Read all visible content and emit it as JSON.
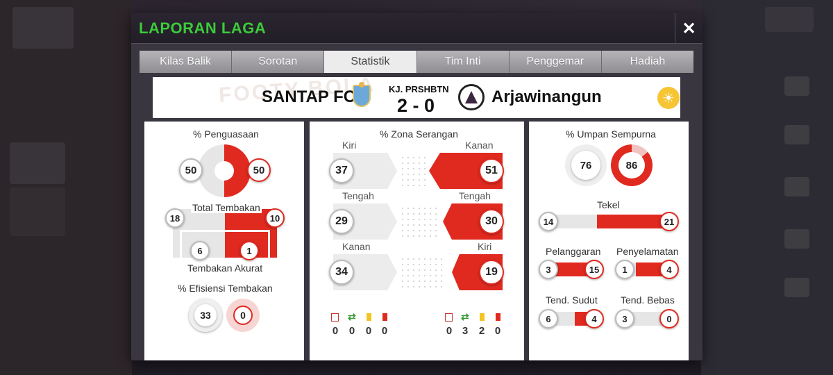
{
  "dialog": {
    "title": "LAPORAN LAGA",
    "close_icon": "✕"
  },
  "tabs": [
    {
      "label": "Kilas Balik"
    },
    {
      "label": "Sorotan"
    },
    {
      "label": "Statistik",
      "active": true
    },
    {
      "label": "Tim Inti"
    },
    {
      "label": "Penggemar"
    },
    {
      "label": "Hadiah"
    }
  ],
  "match": {
    "watermark": "FOOTY BOLA",
    "home": "SANTAP FC",
    "away": "Arjawinangun",
    "venue": "KJ. PRSHBTN",
    "score": "2 - 0",
    "weather_icon": "☀"
  },
  "left_panel": {
    "possession_label": "% Penguasaan",
    "possession_home": "50",
    "possession_away": "50",
    "total_shots_label": "Total Tembakan",
    "total_shots_home": "18",
    "total_shots_away": "10",
    "on_target_home": "6",
    "on_target_away": "1",
    "on_target_label": "Tembakan Akurat",
    "efficiency_label": "% Efisiensi Tembakan",
    "efficiency_home": "33",
    "efficiency_away": "0"
  },
  "mid_panel": {
    "title": "% Zona Serangan",
    "zones": [
      {
        "home_label": "Kiri",
        "home": "37",
        "away_label": "Kanan",
        "away": "51"
      },
      {
        "home_label": "Tengah",
        "home": "29",
        "away_label": "Tengah",
        "away": "30"
      },
      {
        "home_label": "Kanan",
        "home": "34",
        "away_label": "Kiri",
        "away": "19"
      }
    ],
    "home_cards": [
      "0",
      "0",
      "0",
      "0"
    ],
    "away_cards": [
      "0",
      "3",
      "2",
      "0"
    ]
  },
  "right_panel": {
    "pass_label": "% Umpan Sempurna",
    "pass_home": "76",
    "pass_away": "86",
    "tackles_label": "Tekel",
    "tackles_home": "14",
    "tackles_away": "21",
    "fouls_label": "Pelanggaran",
    "fouls_home": "3",
    "fouls_away": "15",
    "saves_label": "Penyelamatan",
    "saves_home": "1",
    "saves_away": "4",
    "corners_label": "Tend. Sudut",
    "corners_home": "6",
    "corners_away": "4",
    "freekicks_label": "Tend. Bebas",
    "freekicks_home": "3",
    "freekicks_away": "0"
  },
  "colors": {
    "accent": "#e02a20",
    "title_green": "#3ccb3a"
  }
}
